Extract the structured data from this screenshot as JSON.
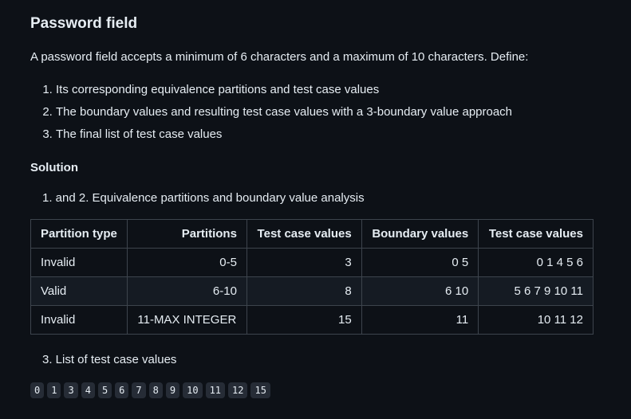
{
  "title": "Password field",
  "intro": "A password field accepts a minimum of 6 characters and a maximum of 10 characters. Define:",
  "tasks": [
    "Its corresponding equivalence partitions and test case values",
    "The boundary values and resulting test case values with a 3-boundary value approach",
    "The final list of test case values"
  ],
  "solution_heading": "Solution",
  "step12": "1. and 2. Equivalence partitions and boundary value analysis",
  "table": {
    "headers": [
      "Partition type",
      "Partitions",
      "Test case values",
      "Boundary values",
      "Test case values"
    ],
    "rows": [
      [
        "Invalid",
        "0-5",
        "3",
        "0 5",
        "0 1 4 5 6"
      ],
      [
        "Valid",
        "6-10",
        "8",
        "6 10",
        "5 6 7 9 10 11"
      ],
      [
        "Invalid",
        "11-MAX INTEGER",
        "15",
        "11",
        "10 11 12"
      ]
    ]
  },
  "step3": "3. List of test case values",
  "final_values": [
    "0",
    "1",
    "3",
    "4",
    "5",
    "6",
    "7",
    "8",
    "9",
    "10",
    "11",
    "12",
    "15"
  ]
}
